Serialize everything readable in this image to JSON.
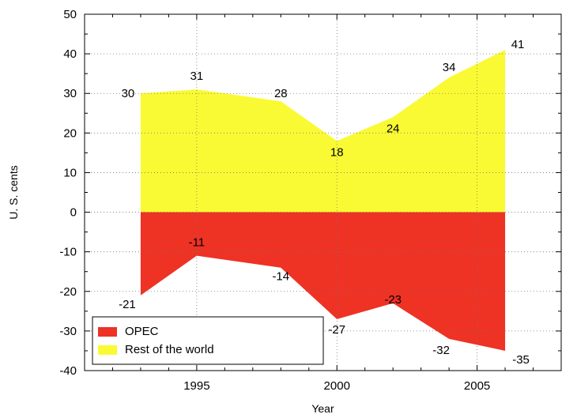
{
  "chart_data": {
    "type": "area",
    "xlabel": "Year",
    "ylabel": "U. S. cents",
    "xlim": [
      1991,
      2008
    ],
    "ylim": [
      -40,
      50
    ],
    "x_ticks": [
      1995,
      2000,
      2005
    ],
    "y_ticks": [
      -40,
      -30,
      -20,
      -10,
      0,
      10,
      20,
      30,
      40,
      50
    ],
    "grid": true,
    "legend_position": "bottom-left",
    "series": [
      {
        "name": "OPEC",
        "color": "#ee3224",
        "points": [
          [
            1993,
            -21
          ],
          [
            1995,
            -11
          ],
          [
            1998,
            -14
          ],
          [
            2000,
            -27
          ],
          [
            2002,
            -23
          ],
          [
            2004,
            -32
          ],
          [
            2006,
            -35
          ]
        ],
        "labels": [
          "-21",
          "-11",
          "-14",
          "-27",
          "-23",
          "-32",
          "-35"
        ]
      },
      {
        "name": "Rest of the world",
        "color": "#fafa34",
        "points": [
          [
            1993,
            30
          ],
          [
            1995,
            31
          ],
          [
            1998,
            28
          ],
          [
            2000,
            18
          ],
          [
            2002,
            24
          ],
          [
            2004,
            34
          ],
          [
            2006,
            41
          ]
        ],
        "labels": [
          "30",
          "31",
          "28",
          "18",
          "24",
          "34",
          "41"
        ]
      }
    ]
  }
}
